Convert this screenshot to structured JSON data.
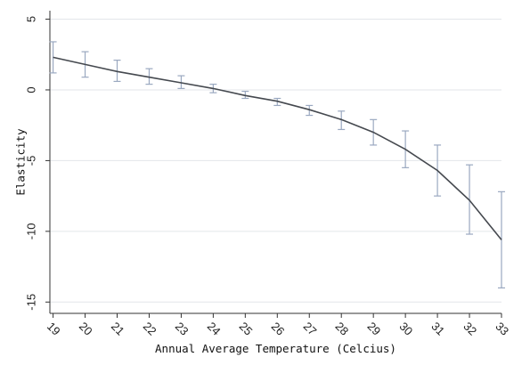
{
  "chart_data": {
    "type": "line",
    "xlabel": "Annual Average Temperature (Celcius)",
    "ylabel": "Elasticity",
    "x": [
      19,
      20,
      21,
      22,
      23,
      24,
      25,
      26,
      27,
      28,
      29,
      30,
      31,
      32,
      33
    ],
    "xlim": [
      18.9,
      33.0
    ],
    "ylim": [
      -15.8,
      5.6
    ],
    "x_ticks": [
      19,
      20,
      21,
      22,
      23,
      24,
      25,
      26,
      27,
      28,
      29,
      30,
      31,
      32,
      33
    ],
    "y_ticks": [
      5,
      0,
      -5,
      -10,
      -15
    ],
    "grid": "horizontal",
    "series": [
      {
        "values": [
          2.3,
          1.8,
          1.3,
          0.9,
          0.5,
          0.1,
          -0.4,
          -0.8,
          -1.4,
          -2.1,
          -3.0,
          -4.2,
          -5.7,
          -7.8,
          -10.6
        ],
        "ci_lower": [
          1.2,
          0.9,
          0.6,
          0.4,
          0.1,
          -0.2,
          -0.6,
          -1.1,
          -1.8,
          -2.8,
          -3.9,
          -5.5,
          -7.5,
          -10.2,
          -14.0
        ],
        "ci_upper": [
          3.4,
          2.7,
          2.1,
          1.5,
          1.0,
          0.4,
          -0.1,
          -0.6,
          -1.1,
          -1.5,
          -2.1,
          -2.9,
          -3.9,
          -5.3,
          -7.2
        ],
        "line_color": "#45494f",
        "errorbar_color": "#9aa8c0"
      }
    ]
  }
}
